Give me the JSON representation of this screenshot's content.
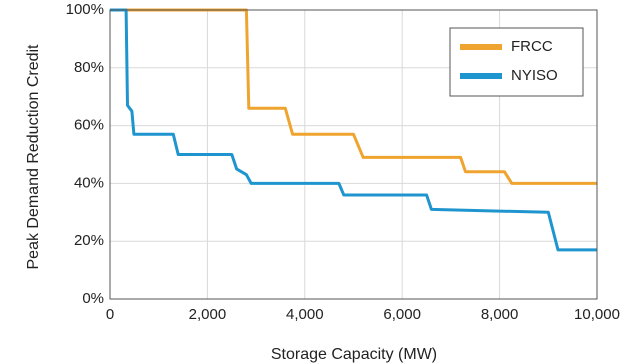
{
  "chart_data": {
    "type": "line",
    "title": "",
    "xlabel": "Storage Capacity (MW)",
    "ylabel": "Peak Demand Reduction Credit",
    "xlim": [
      0,
      10000
    ],
    "ylim": [
      0,
      100
    ],
    "x_ticks": [
      0,
      2000,
      4000,
      6000,
      8000,
      10000
    ],
    "x_tick_labels": [
      "0",
      "2,000",
      "4,000",
      "6,000",
      "8,000",
      "10,000"
    ],
    "y_ticks": [
      0,
      20,
      40,
      60,
      80,
      100
    ],
    "y_tick_labels": [
      "0%",
      "20%",
      "40%",
      "60%",
      "80%",
      "100%"
    ],
    "grid": true,
    "legend": {
      "position": "top-right"
    },
    "series": [
      {
        "name": "FRCC",
        "color": "#f0a430",
        "x": [
          0,
          2800,
          2850,
          3600,
          3750,
          5000,
          5200,
          7200,
          7300,
          8100,
          8250,
          10000
        ],
        "y": [
          100,
          100,
          66,
          66,
          57,
          57,
          49,
          49,
          44,
          44,
          40,
          40
        ]
      },
      {
        "name": "NYISO",
        "color": "#1f95cf",
        "x": [
          0,
          330,
          360,
          450,
          490,
          1300,
          1400,
          2500,
          2600,
          2800,
          2900,
          4700,
          4800,
          6500,
          6600,
          9000,
          9200,
          10000
        ],
        "y": [
          100,
          100,
          67,
          65,
          57,
          57,
          50,
          50,
          45,
          43,
          40,
          40,
          36,
          36,
          31,
          30,
          17,
          17
        ]
      }
    ]
  }
}
